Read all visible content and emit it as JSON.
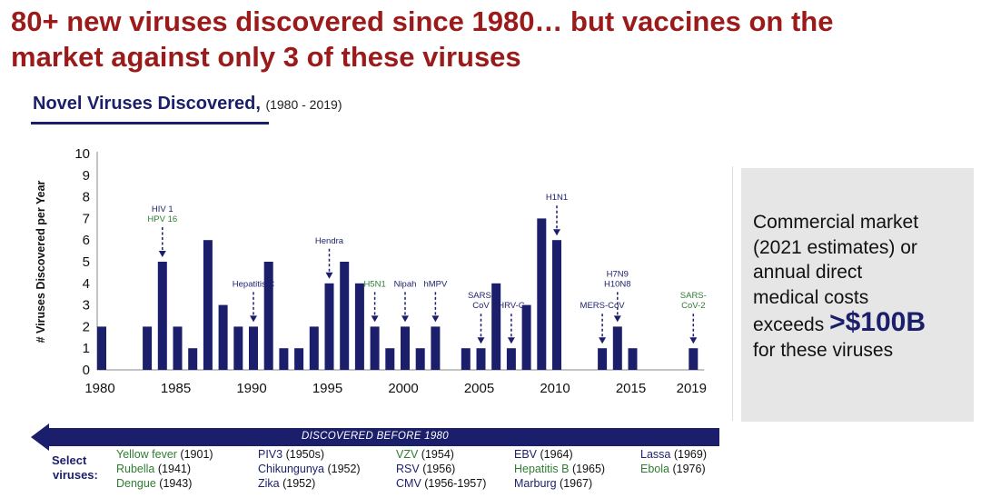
{
  "headline": {
    "line1": "80+ new viruses discovered since 1980… but vaccines on the",
    "line2": "market against only 3 of these viruses"
  },
  "colors": {
    "headline": "#9b1b1b",
    "navy": "#1b1f6b",
    "bar": "#1b1f6b",
    "green_label": "#2e7d32",
    "callout_bg": "#e6e6e6",
    "dash_blue": "#2b5fd8"
  },
  "chart_title": {
    "main": "Novel Viruses Discovered,",
    "range": "(1980 - 2019)"
  },
  "chart_data": {
    "type": "bar",
    "ylabel": "# Viruses Discovered per Year",
    "xlabel": "",
    "ylim": [
      0,
      10
    ],
    "yticks": [
      "0",
      "1",
      "2",
      "3",
      "4",
      "5",
      "6",
      "7",
      "8",
      "9",
      "10"
    ],
    "xticks": [
      "1980",
      "1985",
      "1990",
      "1995",
      "2000",
      "2005",
      "2010",
      "2015",
      "2019"
    ],
    "x": [
      1980,
      1983,
      1984,
      1985,
      1986,
      1987,
      1988,
      1989,
      1990,
      1991,
      1992,
      1993,
      1994,
      1995,
      1996,
      1997,
      1998,
      1999,
      2000,
      2001,
      2002,
      2004,
      2005,
      2006,
      2007,
      2008,
      2009,
      2010,
      2013,
      2014,
      2015,
      2019
    ],
    "values": [
      2,
      2,
      5,
      2,
      1,
      6,
      3,
      2,
      2,
      5,
      1,
      1,
      2,
      4,
      5,
      4,
      2,
      1,
      2,
      1,
      2,
      1,
      1,
      4,
      1,
      3,
      7,
      6,
      1,
      2,
      1,
      1
    ],
    "annotations": [
      {
        "lines": [
          {
            "text": "HIV 1",
            "green": false
          },
          {
            "text": "HPV 16",
            "green": true
          }
        ],
        "x": 1984,
        "value": 5
      },
      {
        "lines": [
          {
            "text": "Hepatitis C",
            "green": false
          }
        ],
        "x": 1990,
        "value": 2
      },
      {
        "lines": [
          {
            "text": "Hendra",
            "green": false
          }
        ],
        "x": 1995,
        "value": 4
      },
      {
        "lines": [
          {
            "text": "H5N1",
            "green": true
          }
        ],
        "x": 1998,
        "value": 2
      },
      {
        "lines": [
          {
            "text": "Nipah",
            "green": false
          }
        ],
        "x": 2000,
        "value": 2
      },
      {
        "lines": [
          {
            "text": "hMPV",
            "green": false
          }
        ],
        "x": 2002,
        "value": 2
      },
      {
        "lines": [
          {
            "text": "SARS-",
            "green": false
          },
          {
            "text": "CoV",
            "green": false
          }
        ],
        "x": 2005,
        "value": 1
      },
      {
        "lines": [
          {
            "text": "HRV-C",
            "green": false
          }
        ],
        "x": 2007,
        "value": 1
      },
      {
        "lines": [
          {
            "text": "H1N1",
            "green": false
          }
        ],
        "x": 2010,
        "value": 6
      },
      {
        "lines": [
          {
            "text": "MERS-CoV",
            "green": false
          }
        ],
        "x": 2013,
        "value": 1
      },
      {
        "lines": [
          {
            "text": "H7N9",
            "green": false
          },
          {
            "text": "H10N8",
            "green": false
          }
        ],
        "x": 2014,
        "value": 2
      },
      {
        "lines": [
          {
            "text": "SARS-",
            "green": true
          },
          {
            "text": "CoV-2",
            "green": true
          }
        ],
        "x": 2019,
        "value": 1
      }
    ]
  },
  "callout": {
    "line1": "Commercial market",
    "line2": "(2021 estimates) or",
    "line3": "annual direct",
    "line4": "medical costs",
    "exceeds": "exceeds",
    "big_value": ">$100B",
    "line6": "for these viruses"
  },
  "discovered_before": "DISCOVERED BEFORE 1980",
  "select_label": {
    "line1": "Select",
    "line2": "viruses:"
  },
  "select_viruses": [
    [
      {
        "name": "Yellow fever",
        "year": "(1901)",
        "green": true
      },
      {
        "name": "Rubella",
        "year": "(1941)",
        "green": true
      },
      {
        "name": "Dengue",
        "year": "(1943)",
        "green": true
      }
    ],
    [
      {
        "name": "PIV3",
        "year": "(1950s)",
        "green": false
      },
      {
        "name": "Chikungunya",
        "year": "(1952)",
        "green": false
      },
      {
        "name": "Zika",
        "year": "(1952)",
        "green": false
      }
    ],
    [
      {
        "name": "VZV",
        "year": "(1954)",
        "green": true
      },
      {
        "name": "RSV",
        "year": "(1956)",
        "green": false
      },
      {
        "name": "CMV",
        "year": "(1956-1957)",
        "green": false
      }
    ],
    [
      {
        "name": "EBV",
        "year": "(1964)",
        "green": false
      },
      {
        "name": "Hepatitis B",
        "year": "(1965)",
        "green": true
      },
      {
        "name": "Marburg",
        "year": "(1967)",
        "green": false
      }
    ],
    [
      {
        "name": "Lassa",
        "year": "(1969)",
        "green": false
      },
      {
        "name": "Ebola",
        "year": "(1976)",
        "green": true
      }
    ]
  ]
}
